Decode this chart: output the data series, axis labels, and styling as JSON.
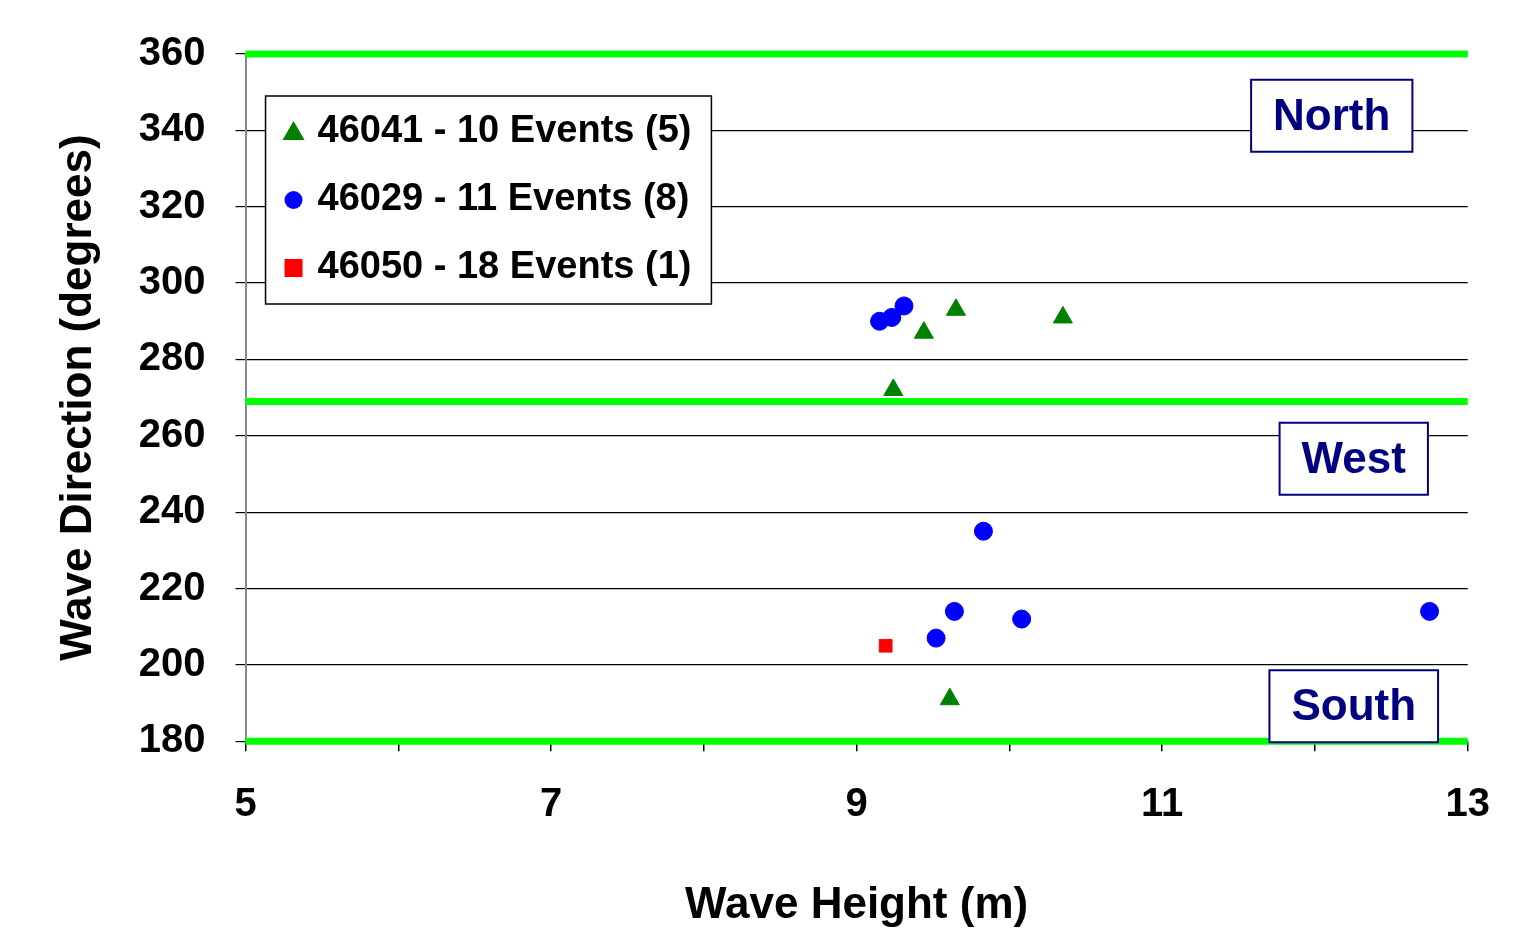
{
  "chart_data": {
    "type": "scatter",
    "xlabel": "Wave Height (m)",
    "ylabel": "Wave Direction (degrees)",
    "xlim": [
      5,
      13
    ],
    "xticks": [
      5,
      {
        "value": 6,
        "label": null
      },
      7,
      {
        "value": 8,
        "label": null
      },
      9,
      {
        "value": 10,
        "label": null
      },
      11,
      {
        "value": 12,
        "label": null
      },
      13
    ],
    "ylim": [
      180,
      360
    ],
    "yticks": [
      180,
      200,
      220,
      240,
      260,
      280,
      300,
      320,
      340,
      360
    ],
    "grid": "y",
    "legend": "top left",
    "series": [
      {
        "name": "46041 - 10 Events (5)",
        "color": "#008000",
        "marker": "triangle",
        "x": [
          9.44,
          9.65,
          10.35,
          9.24,
          9.61
        ],
        "values": [
          287,
          293,
          291,
          272,
          191
        ]
      },
      {
        "name": "46029 - 11 Events (8)",
        "color": "#0000ff",
        "marker": "circle",
        "x": [
          9.15,
          9.23,
          9.31,
          9.83,
          9.64,
          9.52,
          10.08,
          12.75
        ],
        "values": [
          290,
          291,
          294,
          235,
          214,
          207,
          212,
          214
        ]
      },
      {
        "name": "46050 - 18 Events (1)",
        "color": "#ff0000",
        "marker": "square",
        "x": [
          9.19
        ],
        "values": [
          205
        ]
      }
    ],
    "ref_lines": [
      {
        "axis": "y",
        "value": 360,
        "color": "#00ff00"
      },
      {
        "axis": "y",
        "value": 269,
        "color": "#00ff00"
      },
      {
        "axis": "y",
        "value": 180,
        "color": "#00ff00"
      }
    ],
    "annotations": [
      "North",
      "West",
      "South"
    ]
  }
}
